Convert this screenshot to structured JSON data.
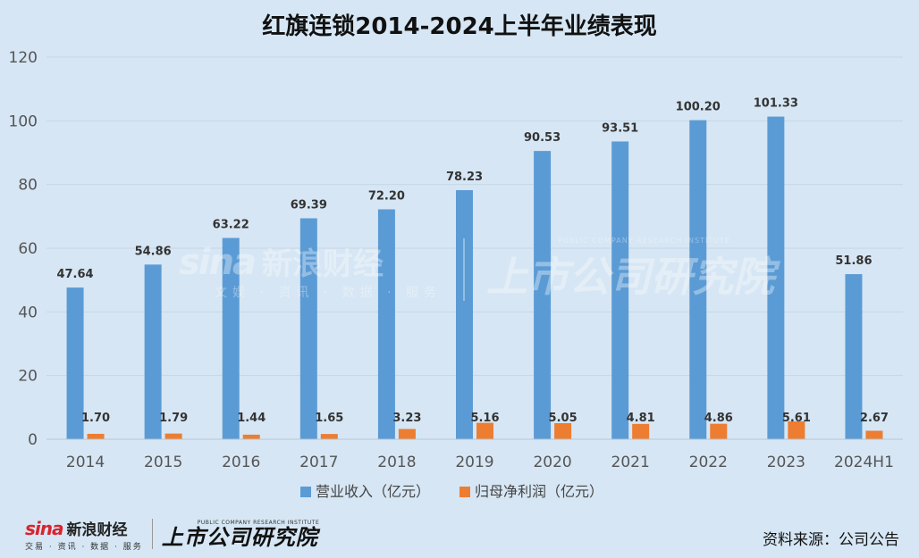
{
  "watermark": {
    "sina_mark": "sina",
    "sina_cn": "新浪财经",
    "sina_sub": "文娱 · 资讯 · 数据 · 服务",
    "inst_en": "PUBLIC COMPANY RESEARCH INSTITUTE",
    "inst_cn": "上市公司研究院"
  },
  "footer": {
    "sina_mark": "sina",
    "sina_cn": "新浪财经",
    "sina_sub": "交易 · 资讯 · 数据 · 服务",
    "inst_en": "PUBLIC COMPANY RESEARCH INSTITUTE",
    "inst_cn": "上市公司研究院",
    "source": "资料来源：公司公告"
  },
  "chart_data": {
    "type": "bar",
    "title": "红旗连锁2014-2024上半年业绩表现",
    "categories": [
      "2014",
      "2015",
      "2016",
      "2017",
      "2018",
      "2019",
      "2020",
      "2021",
      "2022",
      "2023",
      "2024H1"
    ],
    "series": [
      {
        "name": "营业收入（亿元）",
        "color": "#5b9bd5",
        "values": [
          47.64,
          54.86,
          63.22,
          69.39,
          72.2,
          78.23,
          90.53,
          93.51,
          100.2,
          101.33,
          51.86
        ],
        "labels": [
          "47.64",
          "54.86",
          "63.22",
          "69.39",
          "72.20",
          "78.23",
          "90.53",
          "93.51",
          "100.20",
          "101.33",
          "51.86"
        ]
      },
      {
        "name": "归母净利润（亿元）",
        "color": "#ed7d31",
        "values": [
          1.7,
          1.79,
          1.44,
          1.65,
          3.23,
          5.16,
          5.05,
          4.81,
          4.86,
          5.61,
          2.67
        ],
        "labels": [
          "1.70",
          "1.79",
          "1.44",
          "1.65",
          "3.23",
          "5.16",
          "5.05",
          "4.81",
          "4.86",
          "5.61",
          "2.67"
        ]
      }
    ],
    "ylim": [
      0,
      120
    ],
    "yticks": [
      "0",
      "20",
      "40",
      "60",
      "80",
      "100",
      "120"
    ],
    "ytick_values": [
      0,
      20,
      40,
      60,
      80,
      100,
      120
    ],
    "grid": true,
    "legend": "bottom",
    "xlabel": "",
    "ylabel": ""
  }
}
